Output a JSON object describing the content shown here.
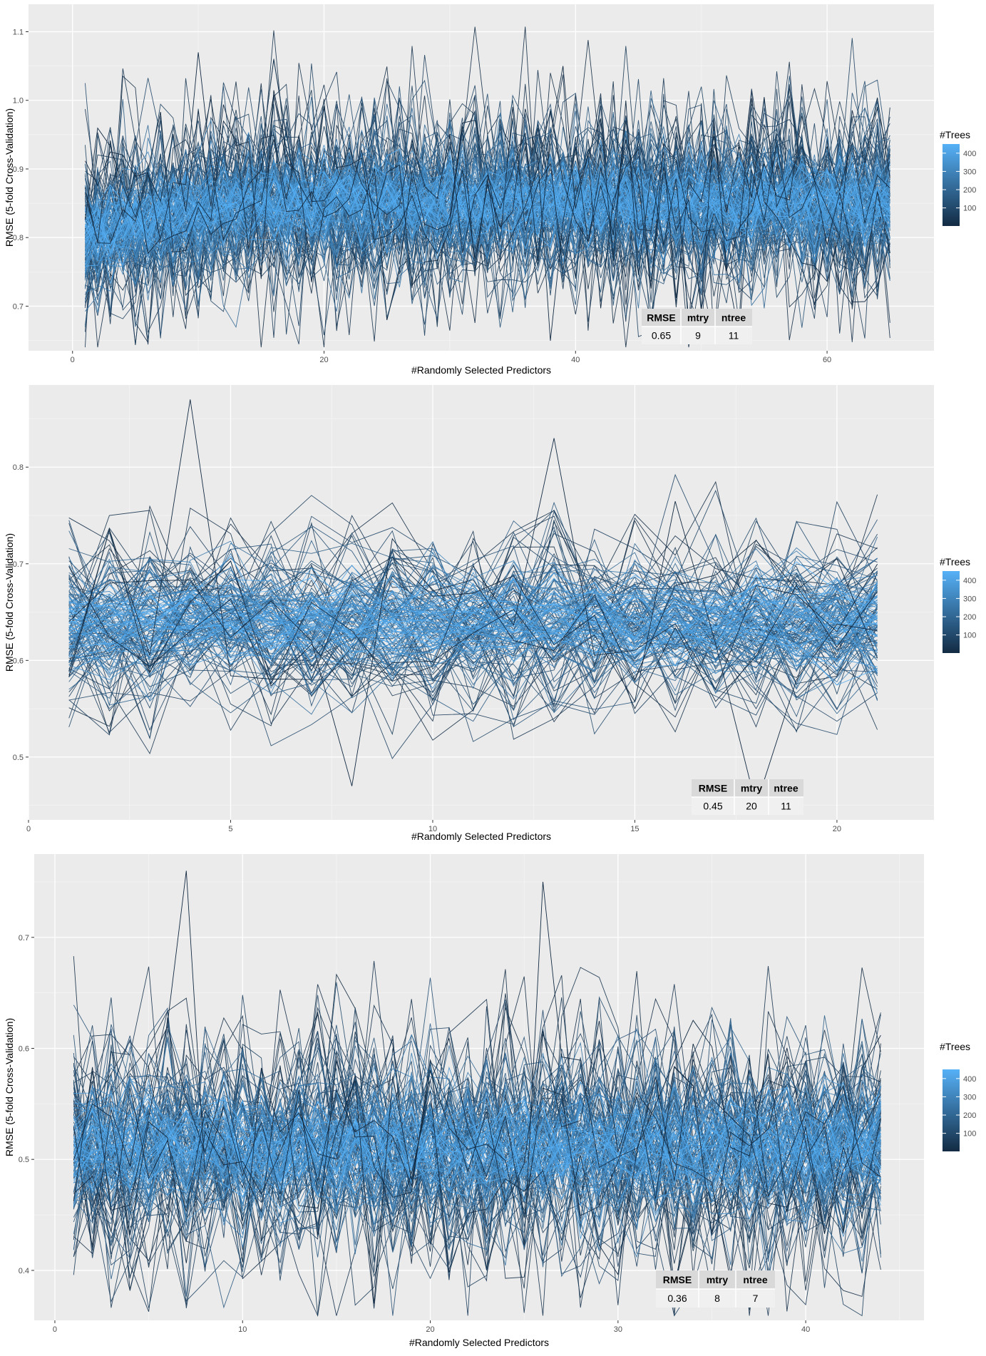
{
  "legend_colors": {
    "low": "#132b43",
    "high": "#56b1f7"
  },
  "chart_data": [
    {
      "type": "line",
      "title": "",
      "xlabel": "#Randomly Selected Predictors",
      "ylabel": "RMSE (5-fold Cross-Validation)",
      "xlim": [
        -3.5,
        68.5
      ],
      "ylim": [
        0.635,
        1.14
      ],
      "x_ticks": [
        0,
        20,
        40,
        60
      ],
      "x_tick_labels": [
        "0",
        "20",
        "40",
        "60"
      ],
      "y_ticks": [
        0.7,
        0.8,
        0.9,
        1.0,
        1.1
      ],
      "y_tick_labels": [
        "0.7",
        "0.8",
        "0.9",
        "1.0",
        "1.1"
      ],
      "x_range": [
        1,
        65
      ],
      "series_summary": {
        "center": 0.85,
        "center_start": 0.8,
        "core_spread": 0.025,
        "outer_spread": 0.09,
        "spikes": [
          1.07,
          0.68,
          1.05,
          0.66
        ]
      },
      "legend": {
        "title": "#Trees",
        "min": 1,
        "max": 450,
        "ticks": [
          100,
          200,
          300,
          400
        ],
        "tick_labels": [
          "100",
          "200",
          "300",
          "400"
        ]
      },
      "best": {
        "headers": [
          "RMSE",
          "mtry",
          "ntree"
        ],
        "values": [
          "0.65",
          "9",
          "11"
        ]
      }
    },
    {
      "type": "line",
      "title": "",
      "xlabel": "#Randomly Selected Predictors",
      "ylabel": "RMSE (5-fold Cross-Validation)",
      "xlim": [
        0,
        22.4
      ],
      "ylim": [
        0.435,
        0.885
      ],
      "x_ticks": [
        0,
        5,
        10,
        15,
        20
      ],
      "x_tick_labels": [
        "0",
        "5",
        "10",
        "15",
        "20"
      ],
      "y_ticks": [
        0.5,
        0.6,
        0.7,
        0.8
      ],
      "y_tick_labels": [
        "0.5",
        "0.6",
        "0.7",
        "0.8"
      ],
      "x_range": [
        1,
        21
      ],
      "series_summary": {
        "center": 0.64,
        "center_start": 0.64,
        "core_spread": 0.02,
        "outer_spread": 0.06,
        "spikes": [
          0.87,
          0.47,
          0.83,
          0.45
        ]
      },
      "legend": {
        "title": "#Trees",
        "min": 1,
        "max": 450,
        "ticks": [
          100,
          200,
          300,
          400
        ],
        "tick_labels": [
          "100",
          "200",
          "300",
          "400"
        ]
      },
      "best": {
        "headers": [
          "RMSE",
          "mtry",
          "ntree"
        ],
        "values": [
          "0.45",
          "20",
          "11"
        ]
      }
    },
    {
      "type": "line",
      "title": "",
      "xlabel": "#Randomly Selected Predictors",
      "ylabel": "RMSE (5-fold Cross-Validation)",
      "xlim": [
        -1.1,
        46.3
      ],
      "ylim": [
        0.355,
        0.775
      ],
      "x_ticks": [
        0,
        10,
        20,
        30,
        40
      ],
      "x_tick_labels": [
        "0",
        "10",
        "20",
        "30",
        "40"
      ],
      "y_ticks": [
        0.4,
        0.5,
        0.6,
        0.7
      ],
      "y_tick_labels": [
        "0.4",
        "0.5",
        "0.6",
        "0.7"
      ],
      "x_range": [
        1,
        44
      ],
      "series_summary": {
        "center": 0.51,
        "center_start": 0.51,
        "core_spread": 0.02,
        "outer_spread": 0.07,
        "spikes": [
          0.76,
          0.37,
          0.75,
          0.39
        ]
      },
      "legend": {
        "title": "#Trees",
        "min": 1,
        "max": 450,
        "ticks": [
          100,
          200,
          300,
          400
        ],
        "tick_labels": [
          "100",
          "200",
          "300",
          "400"
        ]
      },
      "best": {
        "headers": [
          "RMSE",
          "mtry",
          "ntree"
        ],
        "values": [
          "0.36",
          "8",
          "7"
        ]
      }
    }
  ]
}
